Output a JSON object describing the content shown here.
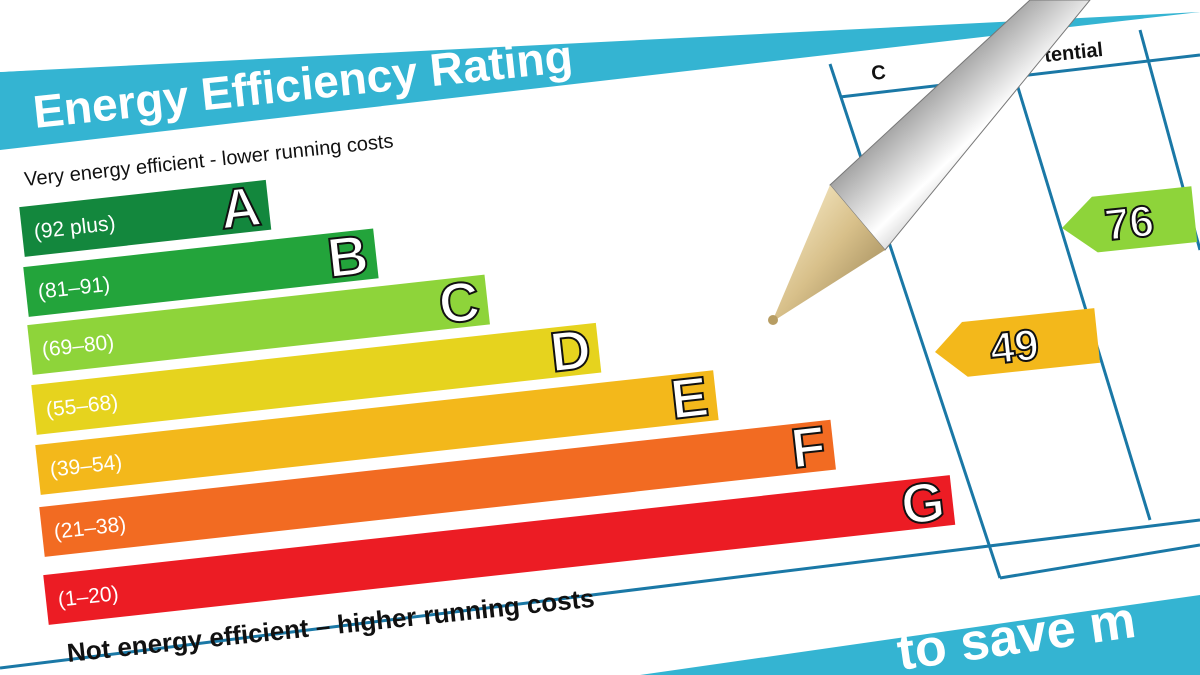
{
  "title": "Energy Efficiency Rating",
  "top_note": "Very energy efficient - lower running costs",
  "bottom_note": "Not energy efficient – higher running costs",
  "columns": {
    "current_partial": "C",
    "potential_partial": "tential"
  },
  "footer_partial": "to save m",
  "bands": [
    {
      "range": "(92 plus)",
      "letter": "A",
      "color": "#13873d"
    },
    {
      "range": "(81–91)",
      "letter": "B",
      "color": "#23a43b"
    },
    {
      "range": "(69–80)",
      "letter": "C",
      "color": "#8ed43a"
    },
    {
      "range": "(55–68)",
      "letter": "D",
      "color": "#e6d31e"
    },
    {
      "range": "(39–54)",
      "letter": "E",
      "color": "#f3b81b"
    },
    {
      "range": "(21–38)",
      "letter": "F",
      "color": "#f26b22"
    },
    {
      "range": "(1–20)",
      "letter": "G",
      "color": "#ec1c24"
    }
  ],
  "current_rating": {
    "value": "49",
    "color": "#f3b81b"
  },
  "potential_rating": {
    "value": "76",
    "color": "#8ed43a"
  },
  "colors": {
    "banner": "#34b4d2",
    "lines": "#1a78a6"
  }
}
